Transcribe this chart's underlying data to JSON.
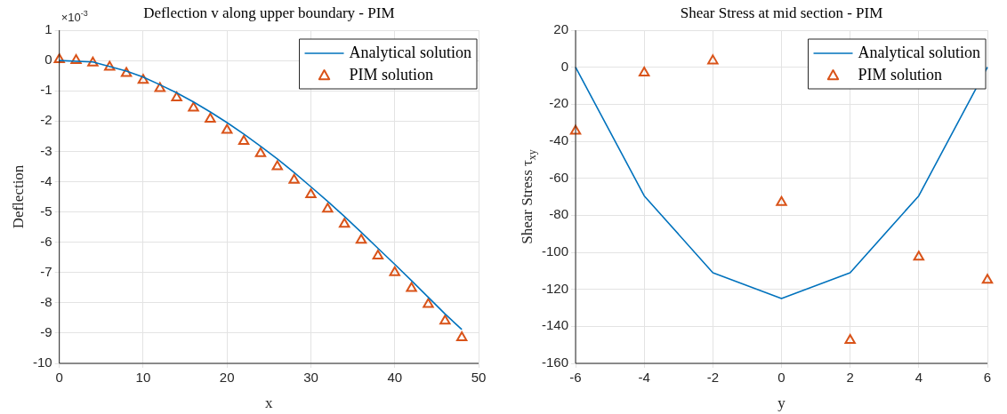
{
  "chart_data": [
    {
      "type": "line",
      "title": "Deflection v along upper boundary - PIM",
      "xlabel": "x",
      "ylabel": "Deflection",
      "annotations": [
        "×10$^{-3}$"
      ],
      "xlim": [
        0,
        50
      ],
      "xticks": [
        0,
        10,
        20,
        30,
        40,
        50
      ],
      "ylim": [
        -10,
        1
      ],
      "yticks": [
        1,
        0,
        -1,
        -2,
        -3,
        -4,
        -5,
        -6,
        -7,
        -8,
        -9,
        -10
      ],
      "grid": true,
      "legend": "top right",
      "series": [
        {
          "name": "Analytical solution",
          "type": "line",
          "color": "#0072bd",
          "marker": "none",
          "line_style": "solid",
          "x": [
            0,
            4,
            8,
            10,
            12,
            14,
            16,
            18,
            20,
            22,
            24,
            26,
            28,
            30,
            32,
            34,
            36,
            38,
            40,
            42,
            44,
            46,
            48
          ],
          "values": [
            0,
            -0.05,
            -0.35,
            -0.55,
            -0.8,
            -1.07,
            -1.37,
            -1.7,
            -2.05,
            -2.43,
            -2.83,
            -3.25,
            -3.7,
            -4.17,
            -4.65,
            -5.15,
            -5.67,
            -6.2,
            -6.73,
            -7.27,
            -7.82,
            -8.37,
            -8.88
          ]
        },
        {
          "name": "PIM solution",
          "type": "scatter",
          "color": "#d95319",
          "marker": "triangle",
          "x": [
            0,
            2,
            4,
            6,
            8,
            10,
            12,
            14,
            16,
            18,
            20,
            22,
            24,
            26,
            28,
            30,
            32,
            34,
            36,
            38,
            40,
            42,
            44,
            46,
            48
          ],
          "values": [
            0.03,
            0,
            -0.08,
            -0.22,
            -0.42,
            -0.65,
            -0.92,
            -1.23,
            -1.57,
            -1.93,
            -2.3,
            -2.67,
            -3.07,
            -3.5,
            -3.95,
            -4.43,
            -4.9,
            -5.4,
            -5.93,
            -6.45,
            -7.0,
            -7.52,
            -8.05,
            -8.6,
            -9.15
          ]
        }
      ]
    },
    {
      "type": "line",
      "title": "Shear Stress at mid section - PIM",
      "xlabel": "y",
      "ylabel": "Shear Stress τ$_{xy}$",
      "xlim": [
        -6,
        6
      ],
      "xticks": [
        -6,
        -4,
        -2,
        0,
        2,
        4,
        6
      ],
      "ylim": [
        -160,
        20
      ],
      "yticks": [
        20,
        0,
        -20,
        -40,
        -60,
        -80,
        -100,
        -120,
        -140,
        -160
      ],
      "grid": true,
      "legend": "top right",
      "series": [
        {
          "name": "Analytical solution",
          "type": "line",
          "color": "#0072bd",
          "marker": "none",
          "line_style": "solid",
          "x": [
            -6,
            -4,
            -2,
            0,
            2,
            4,
            6
          ],
          "values": [
            0,
            -69.5,
            -111,
            -125,
            -111,
            -69.5,
            0
          ]
        },
        {
          "name": "PIM solution",
          "type": "scatter",
          "color": "#d95319",
          "marker": "triangle",
          "x": [
            -6,
            -4,
            -2,
            0,
            2,
            4,
            6
          ],
          "values": [
            -34.5,
            -3,
            3.5,
            -73,
            -147.5,
            -102.5,
            -115
          ]
        }
      ]
    }
  ]
}
